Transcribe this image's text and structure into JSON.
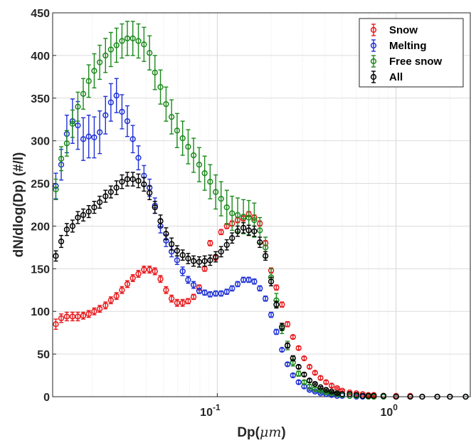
{
  "chart_data": {
    "type": "scatter",
    "title": "",
    "xlabel": "Dp(",
    "xlabel_unit": "μm",
    "xlabel_end": ")",
    "ylabel": "dN/dlog(Dp) (#/l)",
    "xscale": "log",
    "xlim": [
      0.012,
      2.6
    ],
    "ylim": [
      0,
      450
    ],
    "grid": "on (major and minor x, major y)",
    "legend_position": "top-right",
    "xticks": [
      {
        "value": 0.1,
        "base": "10",
        "exp": "-1"
      },
      {
        "value": 1,
        "base": "10",
        "exp": "0"
      }
    ],
    "yticks": [
      0,
      50,
      100,
      150,
      200,
      250,
      300,
      350,
      400,
      450
    ],
    "ytick_labels": [
      "0",
      "50",
      "100",
      "150",
      "200",
      "250",
      "300",
      "350",
      "400",
      "450"
    ],
    "x": [
      0.0125,
      0.0134,
      0.0144,
      0.0155,
      0.0166,
      0.0178,
      0.0191,
      0.0205,
      0.022,
      0.0237,
      0.0254,
      0.0273,
      0.0293,
      0.0314,
      0.0337,
      0.0362,
      0.0389,
      0.0418,
      0.0448,
      0.0481,
      0.0517,
      0.0555,
      0.0596,
      0.064,
      0.0687,
      0.0737,
      0.0792,
      0.085,
      0.0912,
      0.098,
      0.105,
      0.113,
      0.121,
      0.13,
      0.14,
      0.15,
      0.161,
      0.173,
      0.186,
      0.2,
      0.214,
      0.23,
      0.247,
      0.265,
      0.285,
      0.306,
      0.328,
      0.352,
      0.378,
      0.406,
      0.436,
      0.468,
      0.5,
      0.55,
      0.6,
      0.65,
      0.7,
      0.75,
      0.85,
      1.0,
      1.2,
      1.4,
      1.7,
      2.0,
      2.45
    ],
    "series": [
      {
        "name": "Snow",
        "color": "#e8191c",
        "values": [
          85,
          92,
          94,
          94,
          94,
          95,
          97,
          100,
          103,
          107,
          113,
          118,
          125,
          132,
          139,
          144,
          149,
          149,
          147,
          138,
          125,
          115,
          110,
          110,
          112,
          117,
          128,
          150,
          180,
          163,
          193,
          200,
          203,
          207,
          209,
          214,
          210,
          203,
          180,
          148,
          128,
          108,
          85,
          70,
          57,
          45,
          35,
          28,
          22,
          17,
          13,
          10,
          7,
          5,
          4,
          3,
          2,
          2,
          1,
          1,
          1,
          0,
          0,
          0,
          0
        ],
        "error": [
          6,
          5,
          5,
          5,
          5,
          4,
          4,
          4,
          4,
          4,
          4,
          4,
          4,
          4,
          4,
          4,
          4,
          4,
          4,
          4,
          4,
          4,
          4,
          4,
          3,
          3,
          3,
          3,
          3,
          3,
          3,
          3,
          3,
          3,
          3,
          3,
          3,
          3,
          3,
          3,
          3,
          3,
          3,
          2,
          2,
          2,
          2,
          2,
          2,
          2,
          2,
          1,
          1,
          1,
          1,
          1,
          1,
          1,
          0,
          0,
          0,
          0,
          0,
          0,
          0
        ]
      },
      {
        "name": "Melting",
        "color": "#1f31d6",
        "values": [
          247,
          272,
          308,
          323,
          318,
          302,
          305,
          304,
          310,
          330,
          345,
          353,
          334,
          323,
          302,
          280,
          259,
          245,
          224,
          200,
          183,
          170,
          160,
          147,
          137,
          131,
          124,
          122,
          120,
          121,
          121,
          123,
          127,
          132,
          137,
          137,
          135,
          127,
          115,
          96,
          76,
          55,
          38,
          25,
          17,
          12,
          8,
          6,
          4,
          3,
          2,
          1,
          1,
          1,
          0,
          0,
          0,
          0,
          0,
          0,
          0,
          0,
          0,
          0,
          0
        ],
        "error": [
          15,
          18,
          22,
          26,
          28,
          25,
          25,
          24,
          25,
          22,
          22,
          20,
          20,
          18,
          16,
          14,
          12,
          10,
          9,
          8,
          7,
          6,
          5,
          5,
          4,
          4,
          3,
          3,
          3,
          3,
          3,
          3,
          3,
          3,
          3,
          3,
          3,
          3,
          3,
          3,
          3,
          2,
          2,
          2,
          2,
          2,
          1,
          1,
          1,
          1,
          1,
          1,
          0,
          0,
          0,
          0,
          0,
          0,
          0,
          0,
          0,
          0,
          0,
          0,
          0
        ]
      },
      {
        "name": "Free snow",
        "color": "#1a8a1a",
        "values": [
          243,
          279,
          297,
          320,
          340,
          355,
          370,
          382,
          392,
          400,
          407,
          412,
          417,
          420,
          420,
          417,
          413,
          403,
          380,
          363,
          343,
          328,
          312,
          303,
          293,
          283,
          272,
          262,
          252,
          240,
          232,
          222,
          215,
          213,
          211,
          210,
          207,
          195,
          175,
          140,
          113,
          80,
          60,
          40,
          27,
          17,
          12,
          9,
          7,
          5,
          4,
          3,
          2,
          1,
          1,
          1,
          0,
          0,
          0,
          0,
          0,
          0,
          0,
          0,
          0
        ],
        "error": [
          12,
          14,
          15,
          16,
          17,
          18,
          19,
          20,
          20,
          20,
          20,
          20,
          20,
          20,
          20,
          20,
          20,
          20,
          20,
          20,
          20,
          20,
          20,
          20,
          20,
          20,
          20,
          20,
          20,
          20,
          20,
          20,
          20,
          20,
          20,
          20,
          20,
          15,
          12,
          10,
          8,
          6,
          5,
          4,
          3,
          2,
          2,
          2,
          1,
          1,
          1,
          1,
          0,
          0,
          0,
          0,
          0,
          0,
          0,
          0,
          0,
          0,
          0,
          0,
          0
        ]
      },
      {
        "name": "All",
        "color": "#000000",
        "values": [
          165,
          182,
          196,
          200,
          210,
          213,
          217,
          222,
          228,
          235,
          240,
          245,
          252,
          255,
          255,
          253,
          249,
          239,
          222,
          206,
          191,
          179,
          171,
          166,
          162,
          159,
          158,
          159,
          160,
          164,
          170,
          178,
          186,
          194,
          198,
          195,
          194,
          181,
          165,
          135,
          108,
          82,
          60,
          45,
          35,
          26,
          19,
          15,
          11,
          8,
          6,
          4,
          3,
          3,
          2,
          1,
          1,
          1,
          1,
          0,
          0,
          0,
          0,
          0,
          0
        ],
        "error": [
          6,
          7,
          7,
          7,
          7,
          7,
          7,
          7,
          7,
          7,
          7,
          8,
          8,
          8,
          8,
          8,
          8,
          8,
          7,
          7,
          7,
          7,
          6,
          6,
          6,
          6,
          6,
          6,
          6,
          6,
          6,
          6,
          6,
          6,
          6,
          6,
          6,
          6,
          5,
          5,
          4,
          4,
          3,
          3,
          2,
          2,
          2,
          1,
          1,
          1,
          1,
          1,
          0,
          0,
          0,
          0,
          0,
          0,
          0,
          0,
          0,
          0,
          0,
          0,
          0
        ]
      }
    ]
  }
}
